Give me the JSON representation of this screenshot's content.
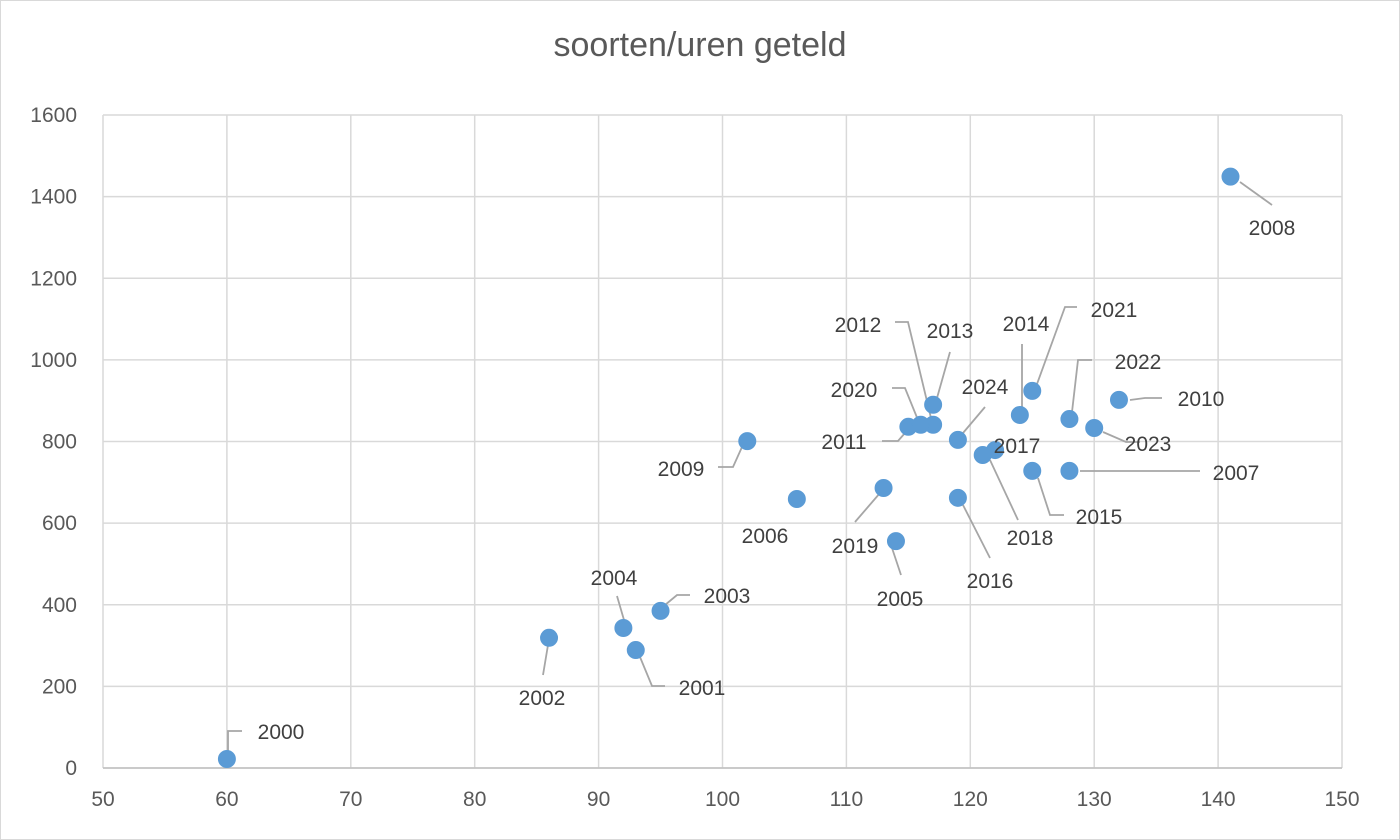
{
  "chart_data": {
    "type": "scatter",
    "title": "soorten/uren geteld",
    "xlabel": "",
    "ylabel": "",
    "xlim": [
      50,
      150
    ],
    "ylim": [
      0,
      1600
    ],
    "x_ticks": [
      50,
      60,
      70,
      80,
      90,
      100,
      110,
      120,
      130,
      140,
      150
    ],
    "y_ticks": [
      0,
      200,
      400,
      600,
      800,
      1000,
      1200,
      1400,
      1600
    ],
    "grid": true,
    "marker_color": "#5b9bd5",
    "points": [
      {
        "label": "2000",
        "x": 60,
        "y": 22
      },
      {
        "label": "2001",
        "x": 93,
        "y": 289
      },
      {
        "label": "2002",
        "x": 86,
        "y": 319
      },
      {
        "label": "2003",
        "x": 95,
        "y": 385
      },
      {
        "label": "2004",
        "x": 92,
        "y": 343
      },
      {
        "label": "2005",
        "x": 114,
        "y": 556
      },
      {
        "label": "2006",
        "x": 106,
        "y": 659
      },
      {
        "label": "2007",
        "x": 128,
        "y": 728
      },
      {
        "label": "2008",
        "x": 141,
        "y": 1449
      },
      {
        "label": "2009",
        "x": 102,
        "y": 801
      },
      {
        "label": "2010",
        "x": 132,
        "y": 902
      },
      {
        "label": "2011",
        "x": 115,
        "y": 836
      },
      {
        "label": "2012",
        "x": 117,
        "y": 841
      },
      {
        "label": "2013",
        "x": 117,
        "y": 890
      },
      {
        "label": "2014",
        "x": 124,
        "y": 865
      },
      {
        "label": "2015",
        "x": 125,
        "y": 728
      },
      {
        "label": "2016",
        "x": 119,
        "y": 662
      },
      {
        "label": "2017",
        "x": 122,
        "y": 779
      },
      {
        "label": "2018",
        "x": 121,
        "y": 767
      },
      {
        "label": "2019",
        "x": 113,
        "y": 686
      },
      {
        "label": "2020",
        "x": 116,
        "y": 841
      },
      {
        "label": "2021",
        "x": 125,
        "y": 924
      },
      {
        "label": "2022",
        "x": 128,
        "y": 855
      },
      {
        "label": "2023",
        "x": 130,
        "y": 833
      },
      {
        "label": "2024",
        "x": 119,
        "y": 804
      }
    ]
  }
}
